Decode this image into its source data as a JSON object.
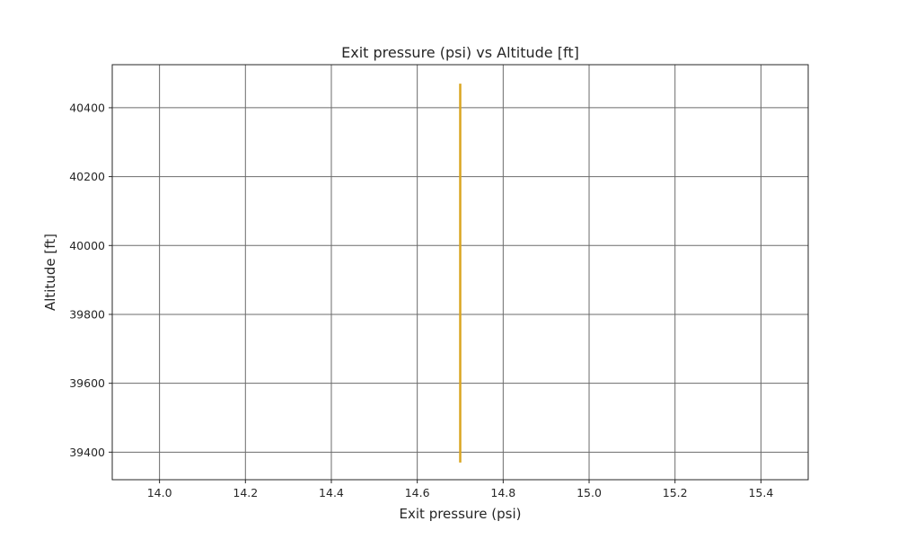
{
  "chart_data": {
    "type": "line",
    "title": "Exit pressure (psi) vs Altitude [ft]",
    "xlabel": "Exit pressure (psi)",
    "ylabel": "Altitude [ft]",
    "xlim": [
      13.89,
      15.51
    ],
    "ylim": [
      39320,
      40525
    ],
    "xticks": [
      14.0,
      14.2,
      14.4,
      14.6,
      14.8,
      15.0,
      15.2,
      15.4
    ],
    "xtick_labels": [
      "14.0",
      "14.2",
      "14.4",
      "14.6",
      "14.8",
      "15.0",
      "15.2",
      "15.4"
    ],
    "yticks": [
      39400,
      39600,
      39800,
      40000,
      40200,
      40400
    ],
    "ytick_labels": [
      "39400",
      "39600",
      "39800",
      "40000",
      "40200",
      "40400"
    ],
    "grid": true,
    "series": [
      {
        "color": "#DAA520",
        "x": [
          14.7,
          14.7
        ],
        "y": [
          39370,
          40470
        ]
      }
    ],
    "colors": {
      "grid": "#6b6b6b",
      "axes": "#262626",
      "line": "#DAA520"
    }
  }
}
